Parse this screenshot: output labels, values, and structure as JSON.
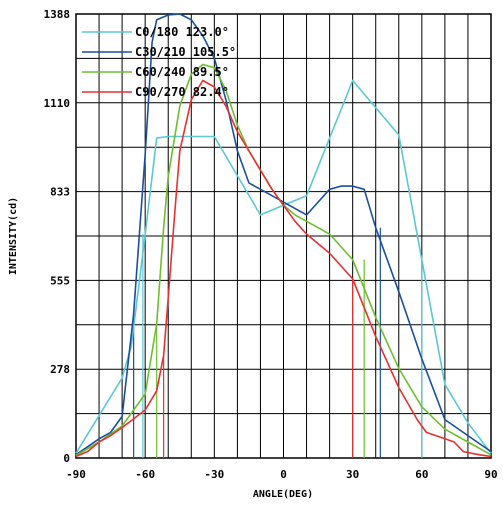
{
  "chart_data": {
    "type": "line",
    "xlabel": "ANGLE(DEG)",
    "ylabel": "INTENSITY(cd)",
    "xlim": [
      -90,
      90
    ],
    "ylim": [
      0,
      1388
    ],
    "x_ticks": [
      -90,
      -60,
      -30,
      0,
      30,
      60,
      90
    ],
    "x_tick_labels": [
      "-90",
      "-60",
      "-30",
      "0",
      "30",
      "60",
      "90"
    ],
    "y_ticks": [
      0,
      278,
      555,
      833,
      1110,
      1388
    ],
    "y_tick_labels": [
      "0",
      "278",
      "555",
      "833",
      "1110",
      "1388"
    ],
    "grid": true,
    "legend_position": "top-left",
    "series": [
      {
        "name": "C0/180 123.0°",
        "color": "#5bc8d4",
        "points": [
          [
            -90,
            15
          ],
          [
            -70,
            250
          ],
          [
            -66,
            350
          ],
          [
            -60,
            700
          ],
          [
            -55,
            1000
          ],
          [
            -50,
            1005
          ],
          [
            -40,
            1005
          ],
          [
            -30,
            1005
          ],
          [
            -10,
            760
          ],
          [
            0,
            790
          ],
          [
            10,
            820
          ],
          [
            20,
            1000
          ],
          [
            30,
            1180
          ],
          [
            50,
            1010
          ],
          [
            60,
            620
          ],
          [
            70,
            230
          ],
          [
            80,
            110
          ],
          [
            90,
            15
          ]
        ],
        "cutoffs": [
          -61,
          60
        ]
      },
      {
        "name": "C30/210 105.5°",
        "color": "#1a4fa0",
        "points": [
          [
            -90,
            10
          ],
          [
            -80,
            60
          ],
          [
            -75,
            80
          ],
          [
            -70,
            130
          ],
          [
            -65,
            450
          ],
          [
            -60,
            950
          ],
          [
            -57,
            1300
          ],
          [
            -55,
            1370
          ],
          [
            -50,
            1385
          ],
          [
            -45,
            1388
          ],
          [
            -40,
            1370
          ],
          [
            -35,
            1320
          ],
          [
            -30,
            1250
          ],
          [
            -25,
            1120
          ],
          [
            -20,
            960
          ],
          [
            -15,
            860
          ],
          [
            -10,
            840
          ],
          [
            -5,
            820
          ],
          [
            0,
            800
          ],
          [
            10,
            760
          ],
          [
            20,
            840
          ],
          [
            25,
            850
          ],
          [
            30,
            850
          ],
          [
            35,
            840
          ],
          [
            40,
            720
          ],
          [
            50,
            520
          ],
          [
            60,
            310
          ],
          [
            70,
            120
          ],
          [
            80,
            70
          ],
          [
            90,
            20
          ]
        ],
        "cutoffs": [
          -65,
          42
        ]
      },
      {
        "name": "C60/240 89.5°",
        "color": "#6cbf2e",
        "points": [
          [
            -90,
            8
          ],
          [
            -80,
            50
          ],
          [
            -70,
            100
          ],
          [
            -60,
            200
          ],
          [
            -55,
            420
          ],
          [
            -52,
            720
          ],
          [
            -50,
            880
          ],
          [
            -45,
            1100
          ],
          [
            -40,
            1200
          ],
          [
            -35,
            1230
          ],
          [
            -30,
            1220
          ],
          [
            -25,
            1150
          ],
          [
            -20,
            1040
          ],
          [
            -15,
            960
          ],
          [
            -10,
            900
          ],
          [
            -5,
            840
          ],
          [
            0,
            790
          ],
          [
            5,
            760
          ],
          [
            10,
            740
          ],
          [
            20,
            700
          ],
          [
            30,
            620
          ],
          [
            40,
            440
          ],
          [
            50,
            280
          ],
          [
            60,
            160
          ],
          [
            70,
            90
          ],
          [
            80,
            50
          ],
          [
            90,
            10
          ]
        ],
        "cutoffs": [
          -55,
          35
        ]
      },
      {
        "name": "C90/270 82.4°",
        "color": "#e83030",
        "points": [
          [
            -90,
            5
          ],
          [
            -85,
            20
          ],
          [
            -80,
            50
          ],
          [
            -75,
            70
          ],
          [
            -70,
            95
          ],
          [
            -60,
            150
          ],
          [
            -55,
            210
          ],
          [
            -52,
            320
          ],
          [
            -50,
            500
          ],
          [
            -47,
            780
          ],
          [
            -45,
            960
          ],
          [
            -40,
            1120
          ],
          [
            -35,
            1180
          ],
          [
            -30,
            1160
          ],
          [
            -25,
            1100
          ],
          [
            -20,
            1020
          ],
          [
            -15,
            960
          ],
          [
            -10,
            900
          ],
          [
            -5,
            840
          ],
          [
            0,
            790
          ],
          [
            5,
            740
          ],
          [
            10,
            700
          ],
          [
            20,
            640
          ],
          [
            30,
            560
          ],
          [
            40,
            380
          ],
          [
            50,
            220
          ],
          [
            58,
            120
          ],
          [
            62,
            80
          ],
          [
            70,
            60
          ],
          [
            74,
            50
          ],
          [
            78,
            20
          ],
          [
            85,
            10
          ],
          [
            90,
            5
          ]
        ],
        "cutoffs": [
          -52,
          30
        ]
      }
    ]
  }
}
